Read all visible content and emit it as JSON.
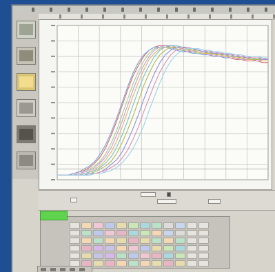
{
  "app": {
    "menu_item_count": 14
  },
  "sidebar": {
    "items": [
      {
        "name": "view-thumb-1",
        "color": "#cfd2c7",
        "inner": "#9ea493"
      },
      {
        "name": "view-thumb-2",
        "color": "#c6c4b6",
        "inner": "#8f8c7c"
      },
      {
        "name": "view-thumb-3",
        "color": "#d9c574",
        "inner": "#f1dd8d"
      },
      {
        "name": "view-thumb-4",
        "color": "#cfcdc6",
        "inner": "#9b9892"
      },
      {
        "name": "view-thumb-5",
        "color": "#7d7a73",
        "inner": "#56534c"
      },
      {
        "name": "view-thumb-6",
        "color": "#bab8b1",
        "inner": "#8d8a83"
      }
    ]
  },
  "chart_data": {
    "type": "line",
    "title": "",
    "xlabel": "",
    "ylabel": "",
    "xlim": [
      0,
      40
    ],
    "ylim": [
      0,
      1.0
    ],
    "grid": true,
    "series": [
      {
        "color": "#d36a6a",
        "values": [
          0.03,
          0.03,
          0.03,
          0.04,
          0.05,
          0.06,
          0.08,
          0.11,
          0.15,
          0.21,
          0.29,
          0.38,
          0.48,
          0.58,
          0.67,
          0.74,
          0.8,
          0.84,
          0.86,
          0.87,
          0.87,
          0.86,
          0.85,
          0.84,
          0.83,
          0.83,
          0.82,
          0.82,
          0.81,
          0.8,
          0.8,
          0.79,
          0.79,
          0.78,
          0.78,
          0.77,
          0.77,
          0.77,
          0.76,
          0.76
        ]
      },
      {
        "color": "#7aa0d8",
        "values": [
          0.03,
          0.03,
          0.03,
          0.04,
          0.05,
          0.07,
          0.09,
          0.12,
          0.17,
          0.23,
          0.31,
          0.4,
          0.5,
          0.6,
          0.69,
          0.76,
          0.81,
          0.84,
          0.86,
          0.86,
          0.86,
          0.85,
          0.84,
          0.83,
          0.83,
          0.82,
          0.82,
          0.81,
          0.81,
          0.8,
          0.8,
          0.79,
          0.79,
          0.79,
          0.78,
          0.78,
          0.78,
          0.78,
          0.77,
          0.77
        ]
      },
      {
        "color": "#9fcf8b",
        "values": [
          0.03,
          0.03,
          0.03,
          0.03,
          0.04,
          0.05,
          0.07,
          0.09,
          0.12,
          0.17,
          0.24,
          0.32,
          0.42,
          0.52,
          0.62,
          0.7,
          0.77,
          0.82,
          0.85,
          0.86,
          0.86,
          0.86,
          0.85,
          0.84,
          0.84,
          0.83,
          0.82,
          0.82,
          0.81,
          0.81,
          0.8,
          0.8,
          0.79,
          0.79,
          0.78,
          0.78,
          0.78,
          0.77,
          0.77,
          0.77
        ]
      },
      {
        "color": "#c79ad6",
        "values": [
          0.03,
          0.03,
          0.03,
          0.03,
          0.04,
          0.05,
          0.06,
          0.08,
          0.11,
          0.15,
          0.21,
          0.29,
          0.38,
          0.48,
          0.58,
          0.67,
          0.74,
          0.8,
          0.84,
          0.86,
          0.87,
          0.87,
          0.86,
          0.85,
          0.84,
          0.83,
          0.83,
          0.82,
          0.81,
          0.81,
          0.8,
          0.8,
          0.79,
          0.79,
          0.78,
          0.78,
          0.78,
          0.77,
          0.77,
          0.77
        ]
      },
      {
        "color": "#e4b36b",
        "values": [
          0.03,
          0.03,
          0.03,
          0.03,
          0.03,
          0.04,
          0.05,
          0.07,
          0.09,
          0.13,
          0.18,
          0.25,
          0.34,
          0.44,
          0.54,
          0.63,
          0.71,
          0.78,
          0.82,
          0.85,
          0.86,
          0.86,
          0.86,
          0.85,
          0.84,
          0.84,
          0.83,
          0.82,
          0.82,
          0.81,
          0.81,
          0.8,
          0.8,
          0.79,
          0.79,
          0.78,
          0.78,
          0.78,
          0.77,
          0.77
        ]
      },
      {
        "color": "#6cc3c7",
        "values": [
          0.03,
          0.03,
          0.03,
          0.03,
          0.03,
          0.04,
          0.05,
          0.06,
          0.08,
          0.11,
          0.15,
          0.21,
          0.29,
          0.38,
          0.48,
          0.58,
          0.67,
          0.74,
          0.8,
          0.84,
          0.86,
          0.87,
          0.87,
          0.86,
          0.85,
          0.84,
          0.84,
          0.83,
          0.82,
          0.82,
          0.81,
          0.81,
          0.8,
          0.8,
          0.79,
          0.79,
          0.79,
          0.78,
          0.78,
          0.78
        ]
      },
      {
        "color": "#b8b24e",
        "values": [
          0.03,
          0.03,
          0.03,
          0.03,
          0.03,
          0.03,
          0.04,
          0.05,
          0.07,
          0.09,
          0.12,
          0.17,
          0.24,
          0.32,
          0.41,
          0.51,
          0.61,
          0.69,
          0.76,
          0.81,
          0.84,
          0.86,
          0.86,
          0.86,
          0.85,
          0.84,
          0.84,
          0.83,
          0.82,
          0.82,
          0.81,
          0.81,
          0.8,
          0.8,
          0.79,
          0.79,
          0.78,
          0.78,
          0.78,
          0.78
        ]
      },
      {
        "color": "#8c8ce0",
        "values": [
          0.03,
          0.03,
          0.03,
          0.03,
          0.03,
          0.03,
          0.04,
          0.04,
          0.05,
          0.07,
          0.1,
          0.13,
          0.18,
          0.25,
          0.33,
          0.42,
          0.52,
          0.61,
          0.69,
          0.76,
          0.81,
          0.84,
          0.86,
          0.86,
          0.86,
          0.85,
          0.84,
          0.83,
          0.83,
          0.82,
          0.82,
          0.81,
          0.81,
          0.8,
          0.8,
          0.79,
          0.79,
          0.79,
          0.78,
          0.78
        ]
      },
      {
        "color": "#d88fb0",
        "values": [
          0.03,
          0.03,
          0.03,
          0.03,
          0.03,
          0.03,
          0.03,
          0.04,
          0.05,
          0.06,
          0.08,
          0.1,
          0.14,
          0.19,
          0.26,
          0.34,
          0.44,
          0.53,
          0.62,
          0.7,
          0.76,
          0.81,
          0.84,
          0.85,
          0.86,
          0.85,
          0.85,
          0.84,
          0.83,
          0.83,
          0.82,
          0.82,
          0.81,
          0.81,
          0.8,
          0.8,
          0.79,
          0.79,
          0.79,
          0.78
        ]
      },
      {
        "color": "#9ad1e8",
        "values": [
          0.03,
          0.03,
          0.03,
          0.03,
          0.03,
          0.03,
          0.03,
          0.04,
          0.04,
          0.05,
          0.06,
          0.08,
          0.11,
          0.15,
          0.2,
          0.27,
          0.35,
          0.45,
          0.54,
          0.63,
          0.71,
          0.77,
          0.81,
          0.84,
          0.85,
          0.85,
          0.85,
          0.84,
          0.84,
          0.83,
          0.83,
          0.82,
          0.82,
          0.81,
          0.81,
          0.8,
          0.8,
          0.8,
          0.79,
          0.79
        ]
      }
    ]
  },
  "toolbar": {
    "buttons": [
      {
        "name": "toolbar-field-1"
      },
      {
        "name": "toolbar-field-2"
      },
      {
        "name": "toolbar-field-3"
      },
      {
        "name": "toolbar-field-4"
      },
      {
        "name": "toolbar-field-5"
      }
    ],
    "status_color": "#5fd34d"
  },
  "plate": {
    "rows": 6,
    "cols": 12,
    "palette": [
      "#c7c4e8",
      "#b9e2c8",
      "#f0c7d4",
      "#c8d6f0",
      "#e6dcae",
      "#d6b8ea",
      "#a9d9df",
      "#f4d7b3",
      "#dcdcdc",
      "#bfc9ee",
      "#e9b4c4",
      "#c9e7b7"
    ]
  }
}
